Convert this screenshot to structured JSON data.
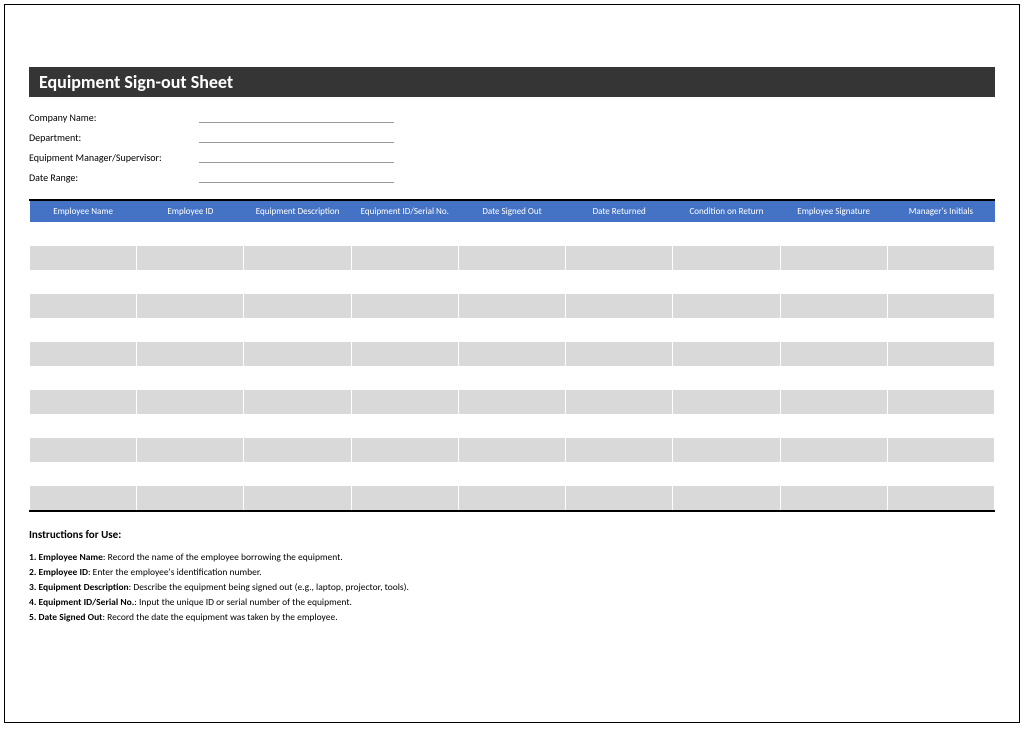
{
  "title": "Equipment Sign-out Sheet",
  "meta": {
    "fields": [
      {
        "label": "Company Name:",
        "value": ""
      },
      {
        "label": "Department:",
        "value": ""
      },
      {
        "label": "Equipment Manager/Supervisor:",
        "value": ""
      },
      {
        "label": "Date Range:",
        "value": ""
      }
    ]
  },
  "table": {
    "header_bg": "#4472c4",
    "header_fg": "#ffffff",
    "row_alt_bg": "#d9d9d9",
    "row_bg": "#ffffff",
    "columns": [
      "Employee Name",
      "Employee ID",
      "Equipment Description",
      "Equipment ID/Serial No.",
      "Date Signed Out",
      "Date Returned",
      "Condition on Return",
      "Employee Signature",
      "Manager's Initials"
    ],
    "row_count": 12
  },
  "instructions": {
    "title": "Instructions for Use:",
    "items": [
      {
        "n": "1.",
        "term": "Employee Name",
        "text": ": Record the name of the employee borrowing the equipment."
      },
      {
        "n": "2.",
        "term": "Employee ID",
        "text": ": Enter the employee's identification number."
      },
      {
        "n": "3.",
        "term": "Equipment Description",
        "text": ": Describe the equipment being signed out (e.g., laptop, projector, tools)."
      },
      {
        "n": "4.",
        "term": "Equipment ID/Serial No.",
        "text": ": Input the unique ID or serial number of the equipment."
      },
      {
        "n": "5.",
        "term": "Date Signed Out",
        "text": ": Record the date the equipment was taken by the employee."
      }
    ]
  }
}
